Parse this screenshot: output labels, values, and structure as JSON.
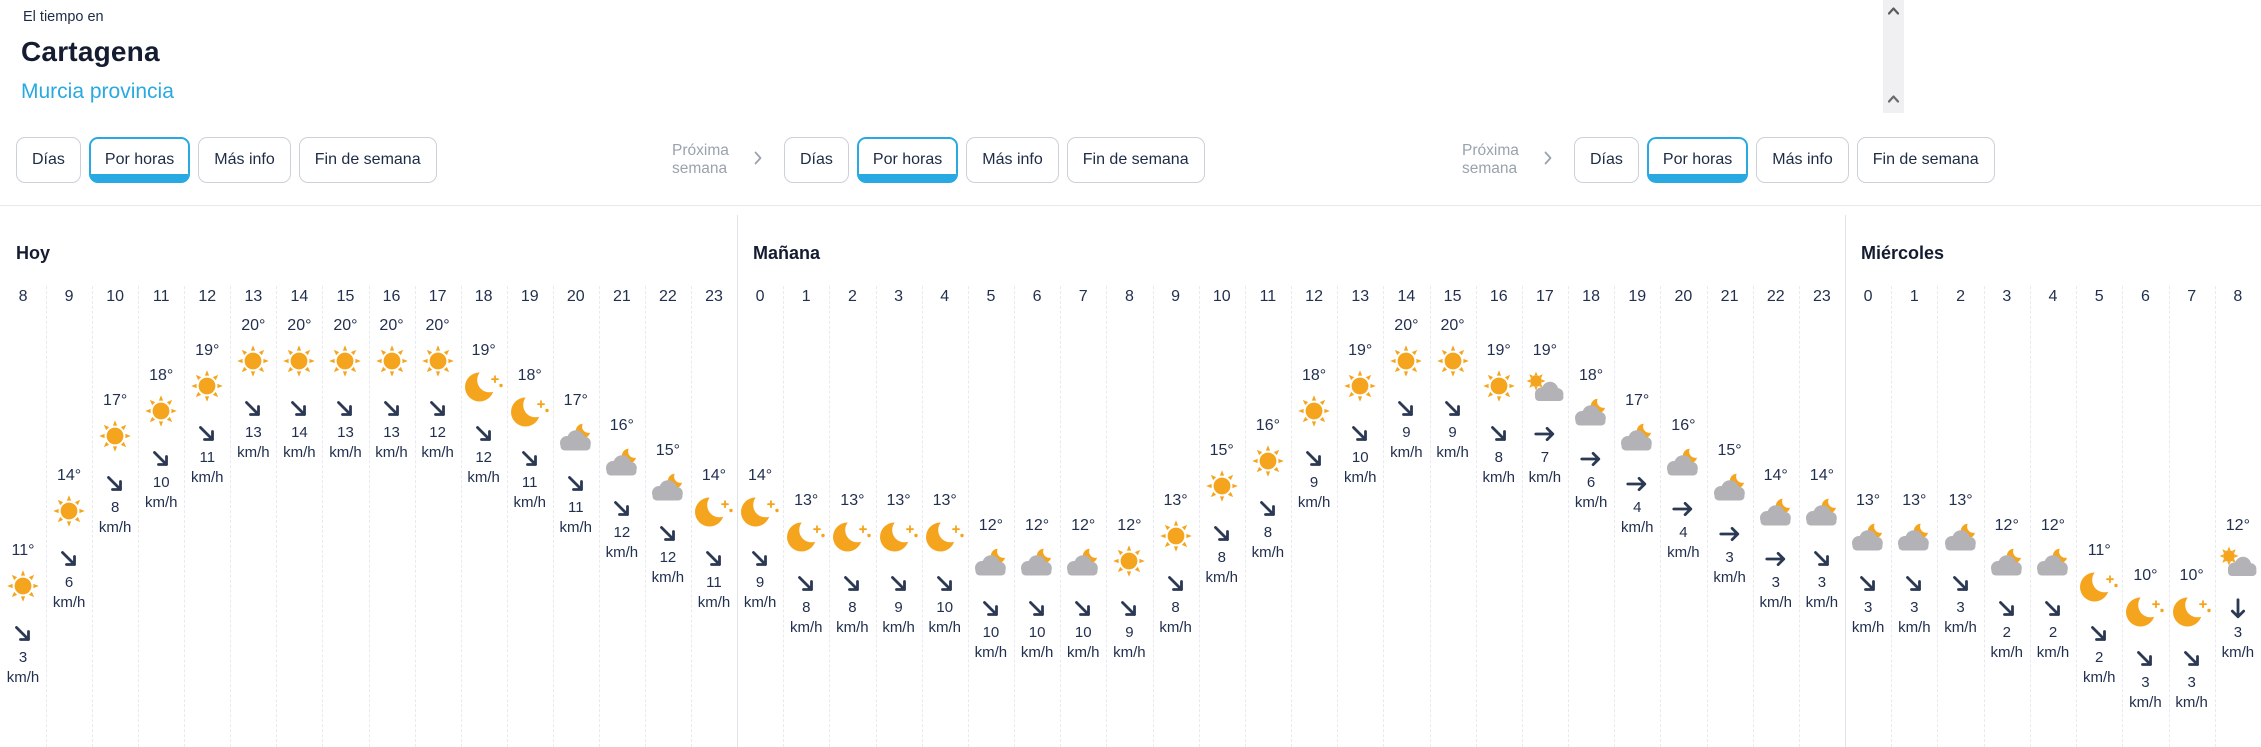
{
  "header": {
    "kicker": "El tiempo en",
    "title": "Cartagena",
    "subtitle": "Murcia provincia"
  },
  "tab_groups": [
    {
      "next_week_label": null,
      "tabs": [
        "Días",
        "Por horas",
        "Más info",
        "Fin de semana"
      ],
      "selected_index": 1
    },
    {
      "next_week_label": "Próxima semana",
      "tabs": [
        "Días",
        "Por horas",
        "Más info",
        "Fin de semana"
      ],
      "selected_index": 1
    },
    {
      "next_week_label": "Próxima semana",
      "tabs": [
        "Días",
        "Por horas",
        "Más info",
        "Fin de semana"
      ],
      "selected_index": 1
    }
  ],
  "degree_symbol": "°",
  "wind_unit": "km/h",
  "colors": {
    "accent_blue": "#29a9e2",
    "navy_text": "#22304f",
    "title_navy": "#141c31",
    "sun_orange": "#f5a41d",
    "cloud_gray": "#b3b3b7",
    "muted_gray": "#9aa2ad"
  },
  "days": [
    {
      "name": "Hoy",
      "hours": [
        {
          "hour": "8",
          "temp": 11,
          "icon": "sun",
          "wind_dir": "se",
          "wind": "3"
        },
        {
          "hour": "9",
          "temp": 14,
          "icon": "sun",
          "wind_dir": "se",
          "wind": "6"
        },
        {
          "hour": "10",
          "temp": 17,
          "icon": "sun",
          "wind_dir": "se",
          "wind": "8"
        },
        {
          "hour": "11",
          "temp": 18,
          "icon": "sun",
          "wind_dir": "se",
          "wind": "10"
        },
        {
          "hour": "12",
          "temp": 19,
          "icon": "sun",
          "wind_dir": "se",
          "wind": "11"
        },
        {
          "hour": "13",
          "temp": 20,
          "icon": "sun",
          "wind_dir": "se",
          "wind": "13"
        },
        {
          "hour": "14",
          "temp": 20,
          "icon": "sun",
          "wind_dir": "se",
          "wind": "14"
        },
        {
          "hour": "15",
          "temp": 20,
          "icon": "sun",
          "wind_dir": "se",
          "wind": "13"
        },
        {
          "hour": "16",
          "temp": 20,
          "icon": "sun",
          "wind_dir": "se",
          "wind": "13"
        },
        {
          "hour": "17",
          "temp": 20,
          "icon": "sun",
          "wind_dir": "se",
          "wind": "12"
        },
        {
          "hour": "18",
          "temp": 19,
          "icon": "moon",
          "wind_dir": "se",
          "wind": "12"
        },
        {
          "hour": "19",
          "temp": 18,
          "icon": "moon",
          "wind_dir": "se",
          "wind": "11"
        },
        {
          "hour": "20",
          "temp": 17,
          "icon": "cloud-moon",
          "wind_dir": "se",
          "wind": "11"
        },
        {
          "hour": "21",
          "temp": 16,
          "icon": "cloud-moon",
          "wind_dir": "se",
          "wind": "12"
        },
        {
          "hour": "22",
          "temp": 15,
          "icon": "cloud-moon",
          "wind_dir": "se",
          "wind": "12"
        },
        {
          "hour": "23",
          "temp": 14,
          "icon": "moon",
          "wind_dir": "se",
          "wind": "11"
        }
      ]
    },
    {
      "name": "Mañana",
      "hours": [
        {
          "hour": "0",
          "temp": 14,
          "icon": "moon",
          "wind_dir": "se",
          "wind": "9"
        },
        {
          "hour": "1",
          "temp": 13,
          "icon": "moon",
          "wind_dir": "se",
          "wind": "8"
        },
        {
          "hour": "2",
          "temp": 13,
          "icon": "moon",
          "wind_dir": "se",
          "wind": "8"
        },
        {
          "hour": "3",
          "temp": 13,
          "icon": "moon",
          "wind_dir": "se",
          "wind": "9"
        },
        {
          "hour": "4",
          "temp": 13,
          "icon": "moon",
          "wind_dir": "se",
          "wind": "10"
        },
        {
          "hour": "5",
          "temp": 12,
          "icon": "cloud-moon",
          "wind_dir": "se",
          "wind": "10"
        },
        {
          "hour": "6",
          "temp": 12,
          "icon": "cloud-moon",
          "wind_dir": "se",
          "wind": "10"
        },
        {
          "hour": "7",
          "temp": 12,
          "icon": "cloud-moon",
          "wind_dir": "se",
          "wind": "10"
        },
        {
          "hour": "8",
          "temp": 12,
          "icon": "sun",
          "wind_dir": "se",
          "wind": "9"
        },
        {
          "hour": "9",
          "temp": 13,
          "icon": "sun",
          "wind_dir": "se",
          "wind": "8"
        },
        {
          "hour": "10",
          "temp": 15,
          "icon": "sun",
          "wind_dir": "se",
          "wind": "8"
        },
        {
          "hour": "11",
          "temp": 16,
          "icon": "sun",
          "wind_dir": "se",
          "wind": "8"
        },
        {
          "hour": "12",
          "temp": 18,
          "icon": "sun",
          "wind_dir": "se",
          "wind": "9"
        },
        {
          "hour": "13",
          "temp": 19,
          "icon": "sun",
          "wind_dir": "se",
          "wind": "10"
        },
        {
          "hour": "14",
          "temp": 20,
          "icon": "sun",
          "wind_dir": "se",
          "wind": "9"
        },
        {
          "hour": "15",
          "temp": 20,
          "icon": "sun",
          "wind_dir": "se",
          "wind": "9"
        },
        {
          "hour": "16",
          "temp": 19,
          "icon": "sun",
          "wind_dir": "se",
          "wind": "8"
        },
        {
          "hour": "17",
          "temp": 19,
          "icon": "sun-cloud",
          "wind_dir": "e",
          "wind": "7"
        },
        {
          "hour": "18",
          "temp": 18,
          "icon": "cloud-moon",
          "wind_dir": "e",
          "wind": "6"
        },
        {
          "hour": "19",
          "temp": 17,
          "icon": "cloud-moon",
          "wind_dir": "e",
          "wind": "4"
        },
        {
          "hour": "20",
          "temp": 16,
          "icon": "cloud-moon",
          "wind_dir": "e",
          "wind": "4"
        },
        {
          "hour": "21",
          "temp": 15,
          "icon": "cloud-moon",
          "wind_dir": "e",
          "wind": "3"
        },
        {
          "hour": "22",
          "temp": 14,
          "icon": "cloud-moon",
          "wind_dir": "e",
          "wind": "3"
        },
        {
          "hour": "23",
          "temp": 14,
          "icon": "cloud-moon",
          "wind_dir": "se",
          "wind": "3"
        }
      ]
    },
    {
      "name": "Miércoles",
      "hours": [
        {
          "hour": "0",
          "temp": 13,
          "icon": "cloud-moon",
          "wind_dir": "se",
          "wind": "3"
        },
        {
          "hour": "1",
          "temp": 13,
          "icon": "cloud-moon",
          "wind_dir": "se",
          "wind": "3"
        },
        {
          "hour": "2",
          "temp": 13,
          "icon": "cloud-moon",
          "wind_dir": "se",
          "wind": "3"
        },
        {
          "hour": "3",
          "temp": 12,
          "icon": "cloud-moon",
          "wind_dir": "se",
          "wind": "2"
        },
        {
          "hour": "4",
          "temp": 12,
          "icon": "cloud-moon",
          "wind_dir": "se",
          "wind": "2"
        },
        {
          "hour": "5",
          "temp": 11,
          "icon": "moon",
          "wind_dir": "se",
          "wind": "2"
        },
        {
          "hour": "6",
          "temp": 10,
          "icon": "moon",
          "wind_dir": "se",
          "wind": "3"
        },
        {
          "hour": "7",
          "temp": 10,
          "icon": "moon",
          "wind_dir": "se",
          "wind": "3"
        },
        {
          "hour": "8",
          "temp": 12,
          "icon": "sun-cloud",
          "wind_dir": "s",
          "wind": "3"
        }
      ]
    }
  ]
}
